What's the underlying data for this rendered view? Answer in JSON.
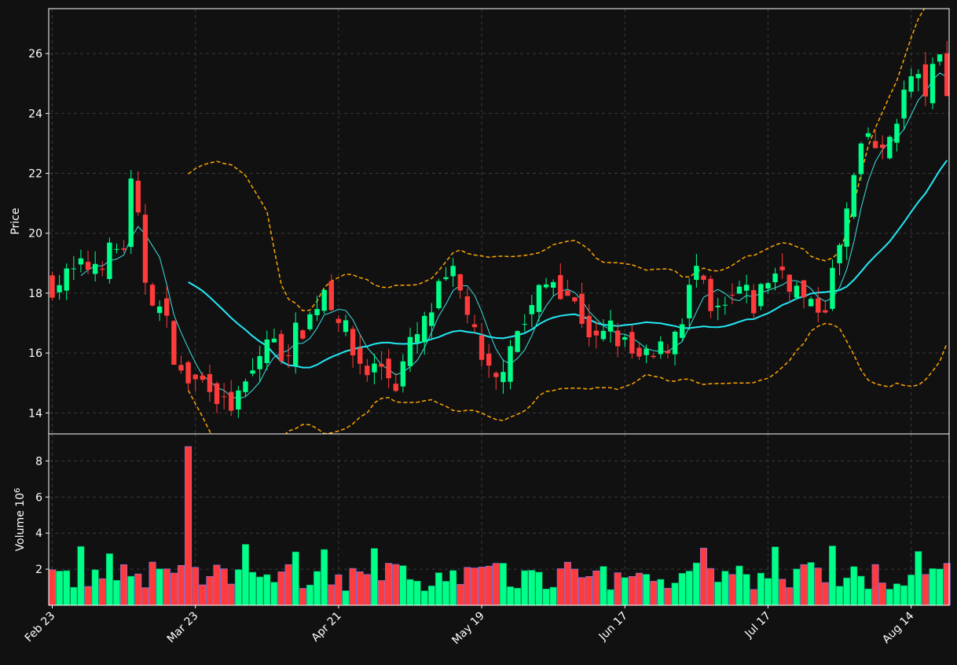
{
  "colors": {
    "background": "#111111",
    "grid": "#3a3a3a",
    "frame": "#ffffff",
    "up": "#00ff88",
    "down": "#ff3b3b",
    "down_edge": "#8080ff",
    "ma_fast": "#3de0e0",
    "ma_slow": "#22e8f5",
    "bands": "#ffa500",
    "text": "#ffffff"
  },
  "chart_data": {
    "type": "candlestick",
    "title": "",
    "price_axis": {
      "label": "Price",
      "ylim": [
        13.3,
        27.5
      ],
      "ticks": [
        14,
        16,
        18,
        20,
        22,
        24,
        26
      ]
    },
    "volume_axis": {
      "label": "Volume",
      "exponent_label": "10",
      "exponent_power": "6",
      "ylim": [
        0,
        9.5
      ],
      "ticks": [
        2,
        4,
        6,
        8
      ]
    },
    "x_ticks": [
      {
        "label": "Feb 23",
        "index": 0
      },
      {
        "label": "Mar 23",
        "index": 20
      },
      {
        "label": "Apr 21",
        "index": 40
      },
      {
        "label": "May 19",
        "index": 60
      },
      {
        "label": "Jun 17",
        "index": 80
      },
      {
        "label": "Jul 17",
        "index": 100
      },
      {
        "label": "Aug 14",
        "index": 120
      }
    ],
    "grid": true,
    "candles_count": 126,
    "price_series_shape": {
      "keypoints": [
        [
          0,
          18.3
        ],
        [
          5,
          18.9
        ],
        [
          10,
          19.6
        ],
        [
          11,
          21.5
        ],
        [
          12,
          20.3
        ],
        [
          13,
          18.5
        ],
        [
          16,
          16.9
        ],
        [
          18,
          15.2
        ],
        [
          20,
          15.0
        ],
        [
          22,
          15.1
        ],
        [
          24,
          14.2
        ],
        [
          26,
          14.4
        ],
        [
          28,
          15.3
        ],
        [
          30,
          16.5
        ],
        [
          32,
          16.0
        ],
        [
          34,
          16.6
        ],
        [
          36,
          17.2
        ],
        [
          38,
          18.2
        ],
        [
          40,
          17.3
        ],
        [
          42,
          16.0
        ],
        [
          44,
          15.4
        ],
        [
          46,
          15.6
        ],
        [
          48,
          15.0
        ],
        [
          50,
          16.2
        ],
        [
          52,
          16.9
        ],
        [
          54,
          18.0
        ],
        [
          56,
          18.5
        ],
        [
          58,
          17.5
        ],
        [
          60,
          15.5
        ],
        [
          62,
          15.0
        ],
        [
          64,
          16.5
        ],
        [
          66,
          17.0
        ],
        [
          68,
          18.0
        ],
        [
          70,
          18.5
        ],
        [
          72,
          18.0
        ],
        [
          74,
          17.2
        ],
        [
          76,
          16.3
        ],
        [
          78,
          16.8
        ],
        [
          80,
          16.2
        ],
        [
          82,
          15.7
        ],
        [
          84,
          15.8
        ],
        [
          86,
          16.3
        ],
        [
          88,
          17.3
        ],
        [
          90,
          18.8
        ],
        [
          92,
          17.2
        ],
        [
          94,
          17.4
        ],
        [
          96,
          18.1
        ],
        [
          98,
          17.6
        ],
        [
          100,
          18.5
        ],
        [
          102,
          18.8
        ],
        [
          104,
          18.1
        ],
        [
          106,
          17.4
        ],
        [
          108,
          17.7
        ],
        [
          110,
          19.5
        ],
        [
          112,
          21.8
        ],
        [
          114,
          23.3
        ],
        [
          116,
          22.5
        ],
        [
          118,
          24.0
        ],
        [
          120,
          25.2
        ],
        [
          122,
          24.8
        ],
        [
          124,
          25.8
        ],
        [
          125,
          25.0
        ]
      ]
    },
    "volume_spike": {
      "index": 19,
      "value": 8.8
    }
  }
}
